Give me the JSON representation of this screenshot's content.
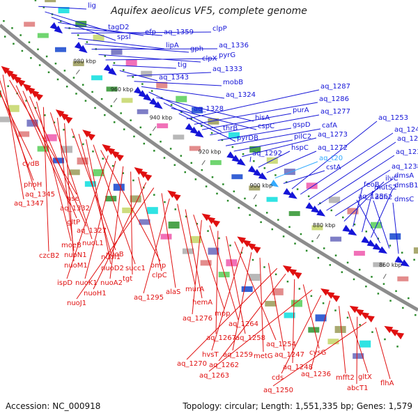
{
  "title": "Aquifex aeolicus VF5, complete genome",
  "footer": {
    "accession": "Accession: NC_000918",
    "topology": "Topology: circular; Length: 1,551,335 bp; Genes: 1,579"
  },
  "colors": {
    "forward_gene": "#1515d8",
    "reverse_gene": "#e01010",
    "rna_gene": "#33aaff",
    "backbone": "#8c8c8c",
    "tick": "#2a8a2a"
  },
  "kbp_ticks": [
    "980 kbp",
    "960 kbp",
    "940 kbp",
    "920 kbp",
    "900 kbp",
    "880 kbp",
    "860 kbp"
  ],
  "forward_labels": [
    {
      "text": "lig",
      "kind": "gene"
    },
    {
      "text": "tagD2",
      "kind": "gene"
    },
    {
      "text": "spsI",
      "kind": "gene"
    },
    {
      "text": "efp",
      "kind": "gene"
    },
    {
      "text": "aq_1359",
      "kind": "gene"
    },
    {
      "text": "clpP",
      "kind": "gene"
    },
    {
      "text": "lipA",
      "kind": "gene"
    },
    {
      "text": "gph",
      "kind": "gene"
    },
    {
      "text": "aq_1336",
      "kind": "gene"
    },
    {
      "text": "clpX",
      "kind": "gene"
    },
    {
      "text": "pyrG",
      "kind": "gene"
    },
    {
      "text": "tig",
      "kind": "gene"
    },
    {
      "text": "aq_1343",
      "kind": "gene"
    },
    {
      "text": "aq_1333",
      "kind": "gene"
    },
    {
      "text": "mobB",
      "kind": "gene"
    },
    {
      "text": "aq_1324",
      "kind": "gene"
    },
    {
      "text": "aq_1328",
      "kind": "gene"
    },
    {
      "text": "hisA",
      "kind": "gene"
    },
    {
      "text": "thrB",
      "kind": "gene"
    },
    {
      "text": "cspC",
      "kind": "gene"
    },
    {
      "text": "pyrDB",
      "kind": "gene"
    },
    {
      "text": "aq_1287",
      "kind": "gene"
    },
    {
      "text": "aq_1286",
      "kind": "gene"
    },
    {
      "text": "purA",
      "kind": "gene"
    },
    {
      "text": "aq_1277",
      "kind": "gene"
    },
    {
      "text": "gspD",
      "kind": "gene"
    },
    {
      "text": "cafA",
      "kind": "gene"
    },
    {
      "text": "pilC2",
      "kind": "gene"
    },
    {
      "text": "aq_1273",
      "kind": "gene"
    },
    {
      "text": "aq_1292",
      "kind": "gene"
    },
    {
      "text": "hspC",
      "kind": "gene"
    },
    {
      "text": "aq_1272",
      "kind": "gene"
    },
    {
      "text": "aq_t20",
      "kind": "rna"
    },
    {
      "text": "cstA",
      "kind": "gene"
    },
    {
      "text": "aq_1253",
      "kind": "gene"
    },
    {
      "text": "aq_1244",
      "kind": "gene"
    },
    {
      "text": "aq_1241",
      "kind": "gene"
    },
    {
      "text": "aq_1239",
      "kind": "gene"
    },
    {
      "text": "aq_1238",
      "kind": "gene"
    },
    {
      "text": "dmsA",
      "kind": "gene"
    },
    {
      "text": "ilvC",
      "kind": "gene"
    },
    {
      "text": "feoB",
      "kind": "gene"
    },
    {
      "text": "mutS2",
      "kind": "gene"
    },
    {
      "text": "dmsB1",
      "kind": "gene"
    },
    {
      "text": "aq_1256",
      "kind": "gene"
    },
    {
      "text": "adh2",
      "kind": "gene"
    },
    {
      "text": "dmsC",
      "kind": "gene"
    }
  ],
  "reverse_labels": [
    "cydB",
    "phoH",
    "aq_1345",
    "aq_1347",
    "nse",
    "aq_1332",
    "gltP",
    "aq_1327",
    "moeB",
    "czcB2",
    "nuoL1",
    "nuoN1",
    "nuoM1",
    "nuoB",
    "nuoI1",
    "nuoD2",
    "succ1",
    "omp",
    "ispD",
    "nuoK1",
    "nuoA2",
    "tgt",
    "clpC",
    "nuoH1",
    "nuoJ1",
    "alaS",
    "aq_1295",
    "murA",
    "hemA",
    "mpp",
    "aq_1276",
    "aq_1264",
    "aq_1267",
    "aq_1258",
    "aq_1254",
    "hvsT",
    "aq_1259",
    "metG",
    "aq_1247",
    "aq_1270",
    "aq_1262",
    "aq_1248",
    "cysG",
    "aq_1263",
    "cds",
    "aq_1236",
    "mfft2",
    "gltX",
    "abcT1",
    "aq_1250",
    "flhA"
  ]
}
